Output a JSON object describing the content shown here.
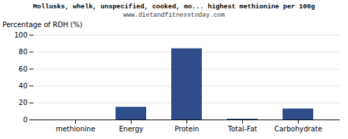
{
  "chart_data": {
    "type": "bar",
    "title": "Mollusks, whelk, unspecified, cooked, mo... highest methionine per 100g",
    "subtitle": "www.dietandfitnesstoday.com",
    "categories": [
      "methionine",
      "Energy",
      "Protein",
      "Total-Fat",
      "Carbohydrate"
    ],
    "values": [
      0,
      15,
      84,
      1,
      13
    ],
    "color": "#2e4d8a",
    "ylabel": "Percentage of RDH (%)",
    "ylim": [
      0,
      100
    ],
    "yticks": [
      0,
      20,
      40,
      60,
      80,
      100
    ],
    "grid": true
  }
}
